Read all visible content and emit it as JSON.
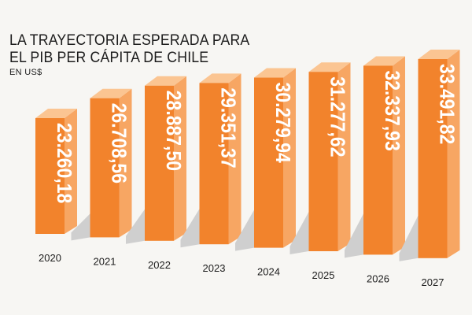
{
  "chart_data": {
    "type": "bar",
    "title_line1": "LA TRAYECTORIA ESPERADA PARA",
    "title_line2": "EL PIB PER CÁPITA DE CHILE",
    "subtitle": "EN US$",
    "categories": [
      "2020",
      "2021",
      "2022",
      "2023",
      "2024",
      "2025",
      "2026",
      "2027"
    ],
    "values": [
      23260.18,
      26708.56,
      28887.5,
      29351.37,
      30279.94,
      31277.62,
      32337.93,
      33491.82
    ],
    "value_labels": [
      "23.260,18",
      "26.708,56",
      "28.887,50",
      "29.351,37",
      "30.279,94",
      "31.277,62",
      "32.337,93",
      "33.491,82"
    ],
    "colors": {
      "front": "#f2832c",
      "side": "#f7a663",
      "top": "#fbc592",
      "shadow": "#cfcfcf",
      "label": "#ffffff"
    }
  }
}
